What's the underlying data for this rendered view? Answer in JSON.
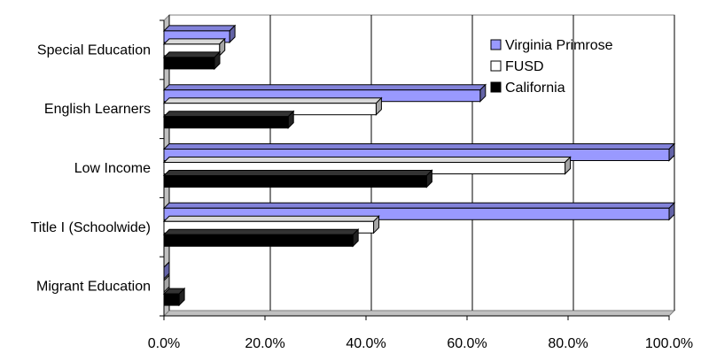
{
  "chart_data": {
    "type": "bar",
    "orientation": "horizontal",
    "style": "3d",
    "categories": [
      "Special Education",
      "English Learners",
      "Low Income",
      "Title I (Schoolwide)",
      "Migrant Education"
    ],
    "series": [
      {
        "name": "Virginia Primrose",
        "color": "#9999ff",
        "values": [
          13.0,
          62.6,
          100.0,
          100.0,
          0.0
        ]
      },
      {
        "name": "FUSD",
        "color": "#ffffff",
        "values": [
          11.0,
          42.0,
          79.4,
          41.5,
          0.0
        ]
      },
      {
        "name": "California",
        "color": "#000000",
        "values": [
          10.0,
          24.6,
          52.0,
          37.4,
          3.0
        ]
      }
    ],
    "xlim": [
      0,
      100
    ],
    "xticks": [
      "0.0%",
      "20.0%",
      "40.0%",
      "60.0%",
      "80.0%",
      "100.0%"
    ],
    "grid": true,
    "legend_position": "top-right",
    "title": "",
    "xlabel": "",
    "ylabel": ""
  }
}
